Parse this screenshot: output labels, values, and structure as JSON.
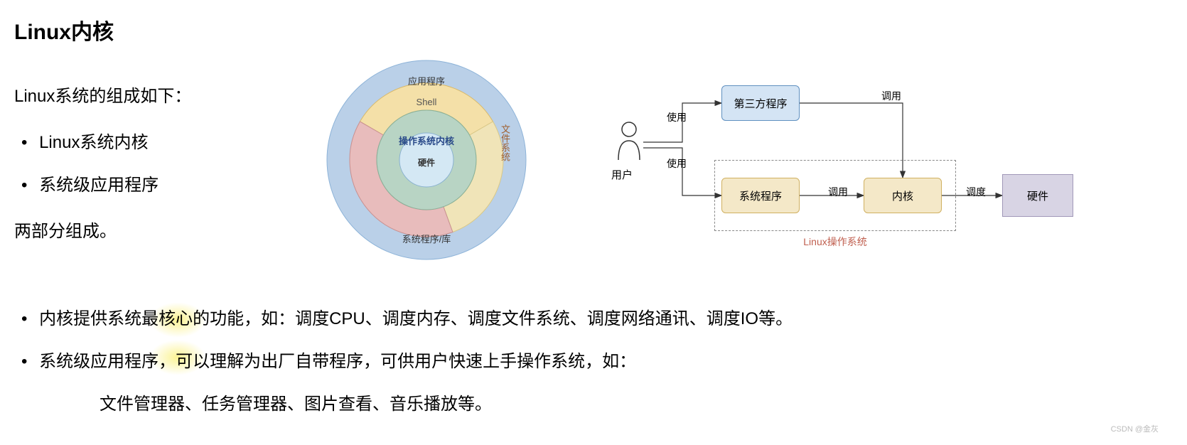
{
  "title": "Linux内核",
  "intro": "Linux系统的组成如下：",
  "bullets_top": [
    "Linux系统内核",
    "系统级应用程序"
  ],
  "conclusion": "两部分组成。",
  "bullets_bottom": [
    "内核提供系统最核心的功能，如：调度CPU、调度内存、调度文件系统、调度网络通讯、调度IO等。",
    "系统级应用程序，可以理解为出厂自带程序，可供用户快速上手操作系统，如："
  ],
  "sub_line": "文件管理器、任务管理器、图片查看、音乐播放等。",
  "watermark": "CSDN @金灰",
  "circle": {
    "labels": {
      "app": "应用程序",
      "shell": "Shell",
      "kernel": "操作系统内核",
      "hardware": "硬件",
      "syslib": "系统程序/库",
      "fs": "文件系统"
    },
    "colors": {
      "outer_fill": "#bad0e8",
      "outer_stroke": "#8db3d8",
      "shell_fill": "#f4e0a8",
      "shell_stroke": "#d8b868",
      "syslib_fill": "#e8bcbc",
      "syslib_stroke": "#c89090",
      "fs_fill": "#f0e4b8",
      "fs_stroke": "#d8c888",
      "kernel_fill": "#b8d4c4",
      "kernel_stroke": "#88b098",
      "hw_fill": "#d4e8f4",
      "hw_stroke": "#88b0d0"
    }
  },
  "flow": {
    "user_label": "用户",
    "boxes": {
      "third_party": {
        "label": "第三方程序",
        "fill": "#d4e4f4",
        "stroke": "#6090c0"
      },
      "sys_prog": {
        "label": "系统程序",
        "fill": "#f4e8c8",
        "stroke": "#d0b060"
      },
      "kernel": {
        "label": "内核",
        "fill": "#f4e8c8",
        "stroke": "#d0b060"
      },
      "hardware": {
        "label": "硬件",
        "fill": "#d8d4e4",
        "stroke": "#a098b8"
      }
    },
    "edge_labels": {
      "use": "使用",
      "call": "调用",
      "schedule": "调度"
    },
    "dashed_label": "Linux操作系统",
    "colors": {
      "dashed_stroke": "#888888",
      "arrow": "#333333",
      "user_stroke": "#333333"
    }
  },
  "highlight_color": "rgba(250,240,120,0.7)"
}
